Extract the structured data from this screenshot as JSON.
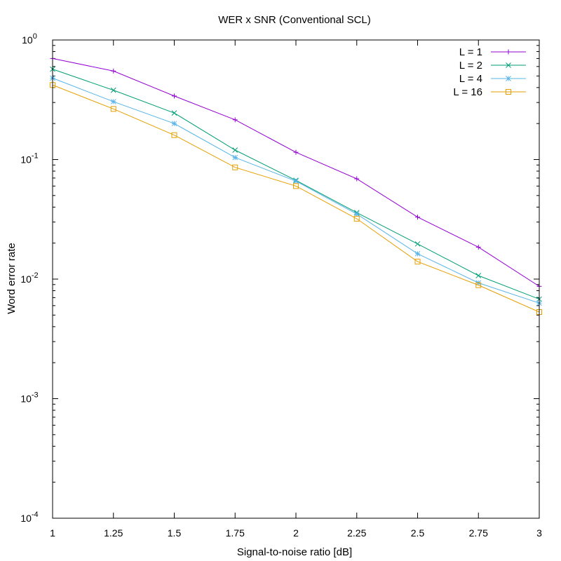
{
  "chart_data": {
    "type": "line",
    "title": "WER x SNR (Conventional SCL)",
    "xlabel": "Signal-to-noise ratio [dB]",
    "ylabel": "Word error rate",
    "xlim": [
      1,
      3
    ],
    "ylim": [
      0.0001,
      1
    ],
    "yscale": "log",
    "x_ticks": [
      "1",
      "1.25",
      "1.5",
      "1.75",
      "2",
      "2.25",
      "2.5",
      "2.75",
      "3"
    ],
    "y_ticks": [
      {
        "value": 0.0001,
        "base": "10",
        "exp": "-4"
      },
      {
        "value": 0.001,
        "base": "10",
        "exp": "-3"
      },
      {
        "value": 0.01,
        "base": "10",
        "exp": "-2"
      },
      {
        "value": 0.1,
        "base": "10",
        "exp": "-1"
      },
      {
        "value": 1,
        "base": "10",
        "exp": "0"
      }
    ],
    "grid": false,
    "legend_position": "top-right",
    "x": [
      1,
      1.25,
      1.5,
      1.75,
      2,
      2.25,
      2.5,
      2.75,
      3
    ],
    "series": [
      {
        "name": "L = 1",
        "color": "#9400d3",
        "marker": "plus",
        "values": [
          0.7,
          0.55,
          0.34,
          0.215,
          0.115,
          0.069,
          0.033,
          0.0185,
          0.0087
        ]
      },
      {
        "name": "L = 2",
        "color": "#009e73",
        "marker": "cross",
        "values": [
          0.57,
          0.38,
          0.245,
          0.12,
          0.067,
          0.036,
          0.0197,
          0.0107,
          0.0068
        ]
      },
      {
        "name": "L = 4",
        "color": "#56b4e9",
        "marker": "star",
        "values": [
          0.48,
          0.305,
          0.2,
          0.104,
          0.066,
          0.035,
          0.0163,
          0.0093,
          0.0063
        ]
      },
      {
        "name": "L = 16",
        "color": "#e69f00",
        "marker": "square",
        "values": [
          0.42,
          0.265,
          0.16,
          0.086,
          0.06,
          0.032,
          0.014,
          0.0089,
          0.0053
        ]
      }
    ]
  }
}
